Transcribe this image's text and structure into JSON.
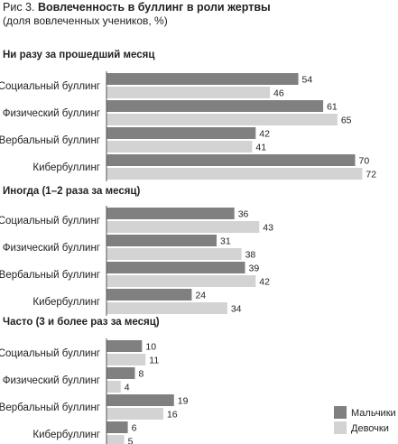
{
  "figure": {
    "title_prefix": "Рис 3. ",
    "title": "Вовлеченность в буллинг в роли жертвы",
    "subtitle": "(доля вовлеченных учеников, %)"
  },
  "colors": {
    "boys": "#808080",
    "girls": "#d3d3d3",
    "axis": "#555555",
    "text": "#222222"
  },
  "chart_data": [
    {
      "type": "bar",
      "orientation": "horizontal",
      "title": "Ни разу за прошедший месяц",
      "categories": [
        "Социальный буллинг",
        "Физический буллинг",
        "Вербальный буллинг",
        "Кибербуллинг"
      ],
      "series": [
        {
          "name": "Мальчики",
          "values": [
            54,
            61,
            42,
            70
          ]
        },
        {
          "name": "Девочки",
          "values": [
            46,
            65,
            41,
            72
          ]
        }
      ]
    },
    {
      "type": "bar",
      "orientation": "horizontal",
      "title": "Иногда (1–2 раза за месяц)",
      "categories": [
        "Социальный буллинг",
        "Физический буллинг",
        "Вербальный буллинг",
        "Кибербуллинг"
      ],
      "series": [
        {
          "name": "Мальчики",
          "values": [
            36,
            31,
            39,
            24
          ]
        },
        {
          "name": "Девочки",
          "values": [
            43,
            38,
            42,
            34
          ]
        }
      ]
    },
    {
      "type": "bar",
      "orientation": "horizontal",
      "title": "Часто (3 и более раз за месяц)",
      "categories": [
        "Социальный буллинг",
        "Физический буллинг",
        "Вербальный буллинг",
        "Кибербуллинг"
      ],
      "series": [
        {
          "name": "Мальчики",
          "values": [
            10,
            8,
            19,
            6
          ]
        },
        {
          "name": "Девочки",
          "values": [
            11,
            4,
            16,
            5
          ]
        }
      ]
    }
  ],
  "legend": {
    "placement": "bottom-right",
    "items": [
      "Мальчики",
      "Девочки"
    ]
  }
}
